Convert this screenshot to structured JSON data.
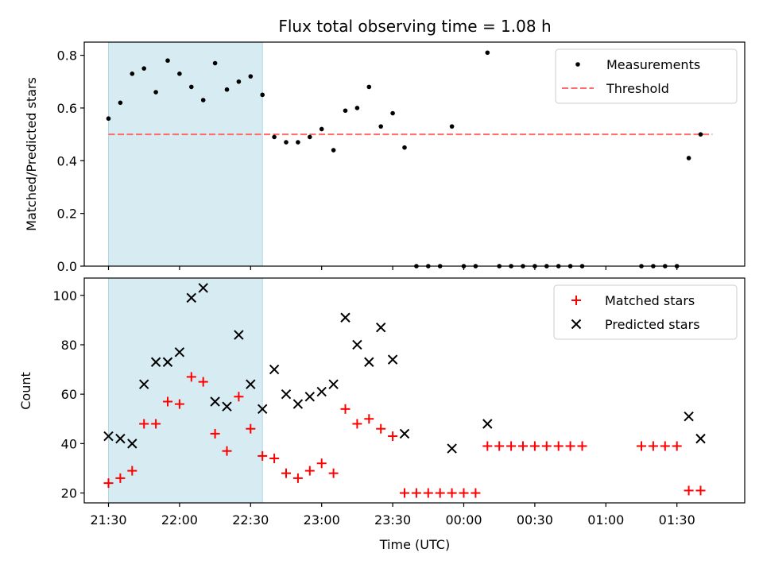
{
  "chart_data": [
    {
      "type": "scatter",
      "title": "Flux total observing time = 1.08 h",
      "ylabel": "Matched/Predicted stars",
      "xlabel": "",
      "ylim": [
        0,
        0.85
      ],
      "yticks": [
        "0.0",
        "0.2",
        "0.4",
        "0.6",
        "0.8"
      ],
      "ytick_values": [
        0,
        0.2,
        0.4,
        0.6,
        0.8
      ],
      "x_unit": "minutes after 21:30 UTC",
      "shaded_interval": [
        "21:30",
        "22:35"
      ],
      "shade_color": "#add8e6",
      "legend_position": "top-right",
      "threshold": {
        "name": "Threshold",
        "value": 0.5,
        "x_range": [
          "21:30",
          "01:45"
        ],
        "color": "#ff6b6b"
      },
      "series": [
        {
          "name": "Measurements",
          "color": "#000000",
          "x": [
            "21:30",
            "21:35",
            "21:40",
            "21:45",
            "21:50",
            "21:55",
            "22:00",
            "22:05",
            "22:10",
            "22:15",
            "22:20",
            "22:25",
            "22:30",
            "22:35",
            "22:40",
            "22:45",
            "22:50",
            "22:55",
            "23:00",
            "23:05",
            "23:10",
            "23:15",
            "23:20",
            "23:25",
            "23:30",
            "23:35",
            "23:40",
            "23:45",
            "23:50",
            "23:55",
            "00:00",
            "00:05",
            "00:10",
            "00:15",
            "00:20",
            "00:25",
            "00:30",
            "00:35",
            "00:40",
            "00:45",
            "00:50",
            "01:15",
            "01:20",
            "01:25",
            "01:30",
            "01:35",
            "01:40"
          ],
          "y": [
            0.56,
            0.62,
            0.73,
            0.75,
            0.66,
            0.78,
            0.73,
            0.68,
            0.63,
            0.77,
            0.67,
            0.7,
            0.72,
            0.65,
            0.49,
            0.47,
            0.47,
            0.49,
            0.52,
            0.44,
            0.59,
            0.6,
            0.68,
            0.53,
            0.58,
            0.45,
            0.0,
            0.0,
            0.0,
            0.53,
            0.0,
            0.0,
            0.81,
            0.0,
            0.0,
            0.0,
            0.0,
            0.0,
            0.0,
            0.0,
            0.0,
            0.0,
            0.0,
            0.0,
            0.0,
            0.41,
            0.5
          ]
        }
      ]
    },
    {
      "type": "scatter",
      "title": "",
      "ylabel": "Count",
      "xlabel": "Time (UTC)",
      "ylim": [
        16,
        107
      ],
      "yticks": [
        "20",
        "40",
        "60",
        "80",
        "100"
      ],
      "ytick_values": [
        20,
        40,
        60,
        80,
        100
      ],
      "x_ticks": [
        "21:30",
        "22:00",
        "22:30",
        "23:00",
        "23:30",
        "00:00",
        "00:30",
        "01:00",
        "01:30"
      ],
      "x_unit": "minutes after 21:30 UTC",
      "shaded_interval": [
        "21:30",
        "22:35"
      ],
      "shade_color": "#add8e6",
      "legend_position": "top-right",
      "series": [
        {
          "name": "Matched stars",
          "marker": "plus",
          "color": "#ff0000",
          "x": [
            "21:30",
            "21:35",
            "21:40",
            "21:45",
            "21:50",
            "21:55",
            "22:00",
            "22:05",
            "22:10",
            "22:15",
            "22:20",
            "22:25",
            "22:30",
            "22:35",
            "22:40",
            "22:45",
            "22:50",
            "22:55",
            "23:00",
            "23:05",
            "23:10",
            "23:15",
            "23:20",
            "23:25",
            "23:30",
            "23:35",
            "23:40",
            "23:45",
            "23:50",
            "23:55",
            "00:00",
            "00:05",
            "00:10",
            "00:15",
            "00:20",
            "00:25",
            "00:30",
            "00:35",
            "00:40",
            "00:45",
            "00:50",
            "01:15",
            "01:20",
            "01:25",
            "01:30",
            "01:35",
            "01:40"
          ],
          "y": [
            24,
            26,
            29,
            48,
            48,
            57,
            56,
            67,
            65,
            44,
            37,
            59,
            46,
            35,
            34,
            28,
            26,
            29,
            32,
            28,
            54,
            48,
            50,
            46,
            43,
            20,
            20,
            20,
            20,
            20,
            20,
            20,
            39,
            39,
            39,
            39,
            39,
            39,
            39,
            39,
            39,
            39,
            39,
            39,
            39,
            21,
            21
          ]
        },
        {
          "name": "Predicted stars",
          "marker": "x",
          "color": "#000000",
          "x": [
            "21:30",
            "21:35",
            "21:40",
            "21:45",
            "21:50",
            "21:55",
            "22:00",
            "22:05",
            "22:10",
            "22:15",
            "22:20",
            "22:25",
            "22:30",
            "22:35",
            "22:40",
            "22:45",
            "22:50",
            "22:55",
            "23:00",
            "23:05",
            "23:10",
            "23:15",
            "23:20",
            "23:25",
            "23:30",
            "23:35",
            "23:55",
            "00:10",
            "01:35",
            "01:40"
          ],
          "y": [
            43,
            42,
            40,
            64,
            73,
            73,
            77,
            99,
            103,
            57,
            55,
            84,
            64,
            54,
            70,
            60,
            56,
            59,
            61,
            64,
            91,
            80,
            73,
            87,
            74,
            44,
            38,
            48,
            51,
            42
          ]
        }
      ]
    }
  ]
}
